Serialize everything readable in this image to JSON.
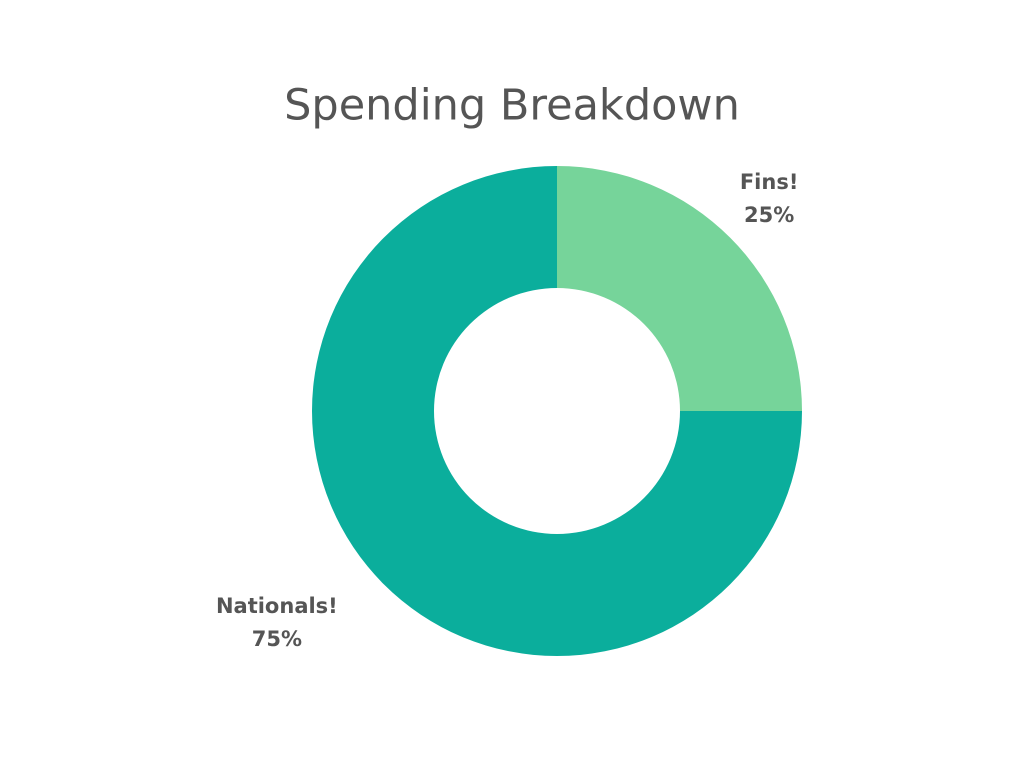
{
  "chart_data": {
    "type": "pie",
    "title": "Spending Breakdown",
    "categories": [
      "Fins!",
      "Nationals!"
    ],
    "values": [
      25,
      75
    ],
    "value_labels": [
      "25%",
      "75%"
    ],
    "colors": [
      "#76d49a",
      "#0bae9c"
    ],
    "donut": true
  }
}
